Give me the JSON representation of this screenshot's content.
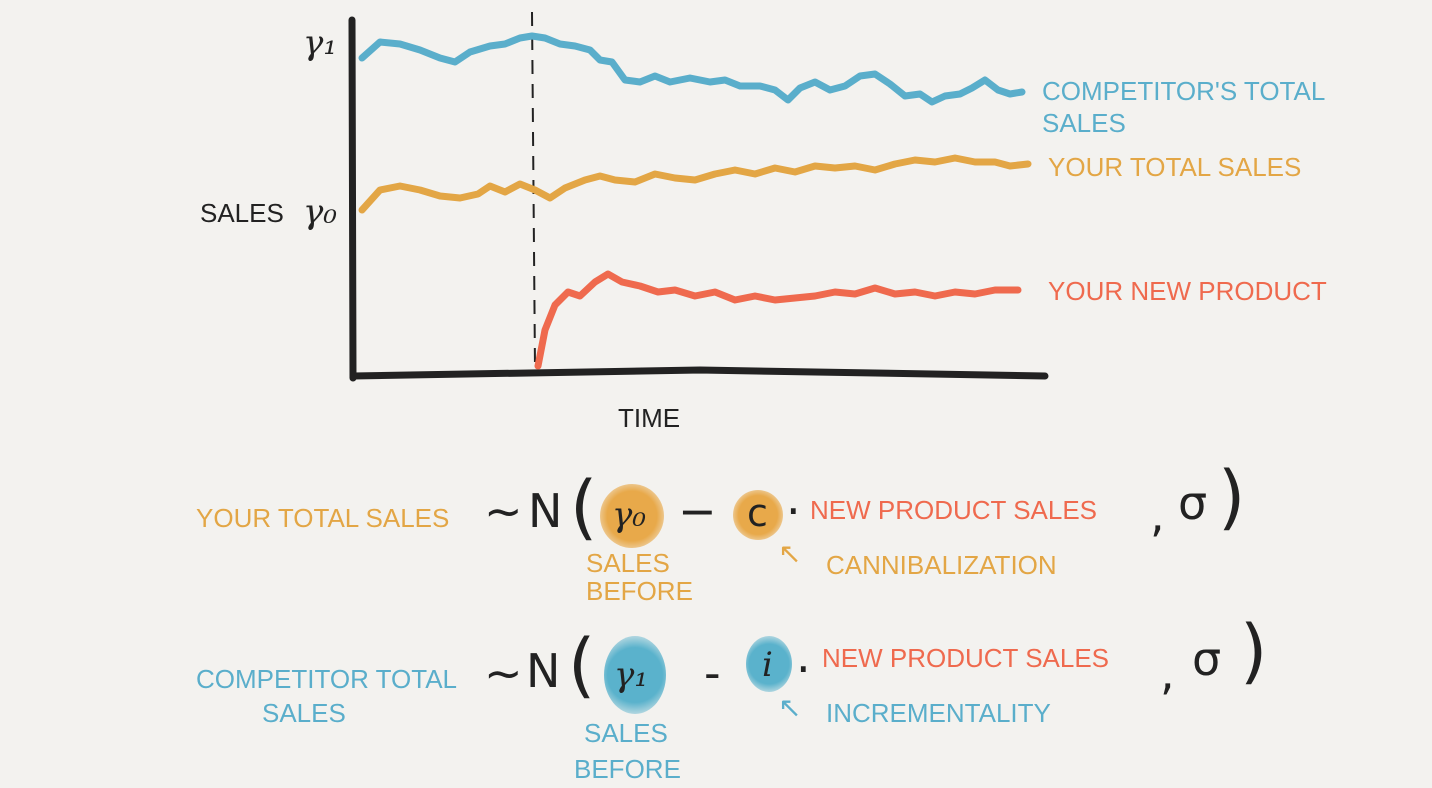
{
  "colors": {
    "competitor": "#5aaecb",
    "your_total": "#e3a645",
    "new_product": "#ef6a4e",
    "ink": "#222222",
    "background": "#f3f2ef"
  },
  "chart": {
    "y_axis_label": "SALES",
    "x_axis_label": "TIME",
    "y_ticks": [
      "γ₁",
      "γ₀"
    ],
    "series": [
      {
        "label_line1": "COMPETITOR'S TOTAL",
        "label_line2": "SALES"
      },
      {
        "label": "YOUR TOTAL SALES"
      },
      {
        "label": "YOUR NEW PRODUCT"
      }
    ]
  },
  "equations": [
    {
      "lhs": "YOUR TOTAL SALES",
      "tilde": "~",
      "dist": "N",
      "open": "(",
      "intercept": "γ₀",
      "minus": "−",
      "coef": "c",
      "dot": "·",
      "term": "NEW PRODUCT SALES",
      "comma": ",",
      "sigma": "σ",
      "close": ")",
      "intercept_note_1": "SALES",
      "intercept_note_2": "BEFORE",
      "arrow": "↖",
      "coef_note": "CANNIBALIZATION"
    },
    {
      "lhs_1": "COMPETITOR TOTAL",
      "lhs_2": "SALES",
      "tilde": "~",
      "dist": "N",
      "open": "(",
      "intercept": "γ₁",
      "minus": "-",
      "coef": "i",
      "dot": "·",
      "term": "NEW PRODUCT SALES",
      "comma": ",",
      "sigma": "σ",
      "close": ")",
      "intercept_note_1": "SALES",
      "intercept_note_2": "BEFORE",
      "arrow": "↖",
      "coef_note": "INCREMENTALITY"
    }
  ]
}
